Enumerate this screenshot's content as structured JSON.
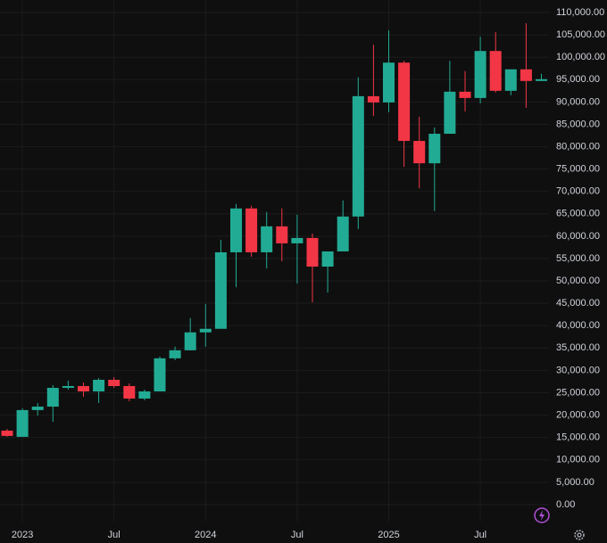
{
  "chart_data": {
    "type": "candlestick",
    "categories": [
      null,
      "2023",
      null,
      null,
      null,
      null,
      null,
      "Jul",
      null,
      null,
      null,
      null,
      null,
      "2024",
      null,
      null,
      null,
      null,
      null,
      "Jul",
      null,
      null,
      null,
      null,
      null,
      "2025",
      null,
      null,
      null,
      null,
      null,
      "Jul",
      null,
      null,
      null,
      null
    ],
    "open": [
      16540,
      15150,
      21130,
      21900,
      26100,
      26500,
      25300,
      27900,
      26500,
      23700,
      25300,
      32700,
      34500,
      38500,
      39300,
      56400,
      66200,
      56400,
      62200,
      58400,
      59600,
      53200,
      56600,
      64400,
      91300,
      89900,
      98800,
      81300,
      76300,
      82900,
      92300,
      90900,
      101400,
      92500,
      97300,
      94700
    ],
    "high": [
      16900,
      21520,
      22700,
      26700,
      27700,
      27300,
      28300,
      28500,
      27100,
      25700,
      33100,
      35300,
      41700,
      44800,
      59200,
      67200,
      66800,
      65400,
      66200,
      64800,
      60600,
      56600,
      68000,
      95500,
      102800,
      106000,
      99200,
      86700,
      84300,
      99200,
      96900,
      104600,
      105600,
      97300,
      107600,
      96300
    ],
    "low": [
      15200,
      15150,
      19900,
      18500,
      25700,
      24100,
      22700,
      26100,
      23100,
      23300,
      25300,
      32300,
      34500,
      35300,
      39300,
      48600,
      55400,
      52800,
      54400,
      49400,
      45200,
      47400,
      56600,
      61600,
      86900,
      87700,
      75500,
      70700,
      65600,
      82900,
      87900,
      89700,
      92100,
      91500,
      88700,
      94700
    ],
    "close": [
      15350,
      21130,
      21900,
      26100,
      26500,
      25300,
      27900,
      26500,
      23700,
      25300,
      32700,
      34500,
      38500,
      39300,
      56400,
      66200,
      56400,
      62200,
      58400,
      59600,
      53200,
      56600,
      64400,
      91300,
      89900,
      98800,
      81300,
      76300,
      82900,
      92300,
      90900,
      101400,
      92500,
      97300,
      94700,
      95100
    ],
    "up_color": "#22ab94",
    "down_color": "#f23645",
    "ylim": [
      -3800,
      112800
    ],
    "yticks": [
      {
        "value": 0,
        "label": "0.00"
      },
      {
        "value": 5000,
        "label": "5,000.00"
      },
      {
        "value": 10000,
        "label": "10,000.00"
      },
      {
        "value": 15000,
        "label": "15,000.00"
      },
      {
        "value": 20000,
        "label": "20,000.00"
      },
      {
        "value": 25000,
        "label": "25,000.00"
      },
      {
        "value": 30000,
        "label": "30,000.00"
      },
      {
        "value": 35000,
        "label": "35,000.00"
      },
      {
        "value": 40000,
        "label": "40,000.00"
      },
      {
        "value": 45000,
        "label": "45,000.00"
      },
      {
        "value": 50000,
        "label": "50,000.00"
      },
      {
        "value": 55000,
        "label": "55,000.00"
      },
      {
        "value": 60000,
        "label": "60,000.00"
      },
      {
        "value": 65000,
        "label": "65,000.00"
      },
      {
        "value": 70000,
        "label": "70,000.00"
      },
      {
        "value": 75000,
        "label": "75,000.00"
      },
      {
        "value": 80000,
        "label": "80,000.00"
      },
      {
        "value": 85000,
        "label": "85,000.00"
      },
      {
        "value": 90000,
        "label": "90,000.00"
      },
      {
        "value": 95000,
        "label": "95,000.00"
      },
      {
        "value": 100000,
        "label": "100,000.00"
      },
      {
        "value": 105000,
        "label": "105,000.00"
      },
      {
        "value": 110000,
        "label": "110,000.00"
      }
    ],
    "grid": true
  }
}
